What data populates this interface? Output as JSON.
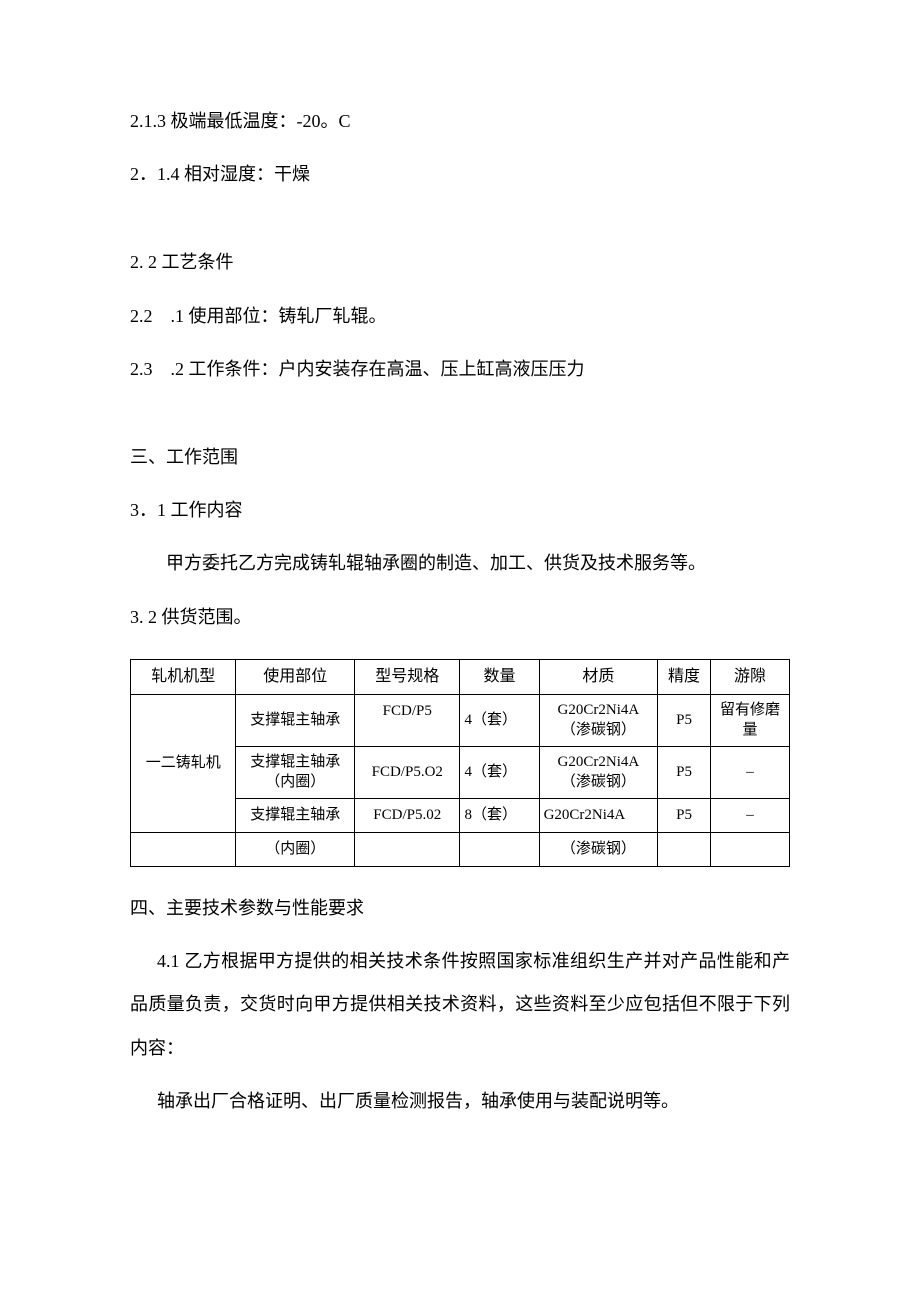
{
  "body": {
    "p1": "2.1.3 极端最低温度：-20。C",
    "p2": "2．1.4 相对湿度：干燥",
    "p3": "2. 2 工艺条件",
    "p4": "2.2　.1 使用部位：铸轧厂轧辊。",
    "p5": "2.3　.2 工作条件：户内安装存在高温、压上缸高液压压力",
    "p6": "三、工作范围",
    "p7": "3．1 工作内容",
    "p8": "甲方委托乙方完成铸轧辊轴承圈的制造、加工、供货及技术服务等。",
    "p9": "3. 2 供货范围。",
    "p10": "四、主要技术参数与性能要求",
    "p11": "4.1  乙方根据甲方提供的相关技术条件按照国家标准组织生产并对产品性能和产品质量负责，交货时向甲方提供相关技术资料，这些资料至少应包括但不限于下列内容：",
    "p12": "轴承出厂合格证明、出厂质量检测报告，轴承使用与装配说明等。"
  },
  "table": {
    "headers": [
      "轧机机型",
      "使用部位",
      "型号规格",
      "数量",
      "材质",
      "精度",
      "游隙"
    ],
    "rows": [
      {
        "machine": "一二铸轧机",
        "position": "支撑辊主轴承",
        "model": "FCD/P5",
        "qty": "4（套）",
        "material_l1": "G20Cr2Ni4A",
        "material_l2": "（渗碳钢）",
        "precision": "P5",
        "clearance_l1": "留有修磨",
        "clearance_l2": "量"
      },
      {
        "position_l1": "支撑辊主轴承",
        "position_l2": "（内圈）",
        "model": "FCD/P5.O2",
        "qty": "4（套）",
        "material_l1": "G20Cr2Ni4A",
        "material_l2": "（渗碳钢）",
        "precision": "P5",
        "clearance": "–"
      },
      {
        "position": "支撑辊主轴承",
        "model": "FCD/P5.02",
        "qty": "8（套）",
        "material": "G20Cr2Ni4A",
        "precision": "P5",
        "clearance": "–"
      },
      {
        "position": "（内圈）",
        "material": "（渗碳钢）"
      }
    ]
  },
  "style": {
    "font_size_body": 18,
    "font_size_table": 15,
    "text_color": "#000000",
    "background_color": "#ffffff",
    "border_color": "#000000"
  }
}
